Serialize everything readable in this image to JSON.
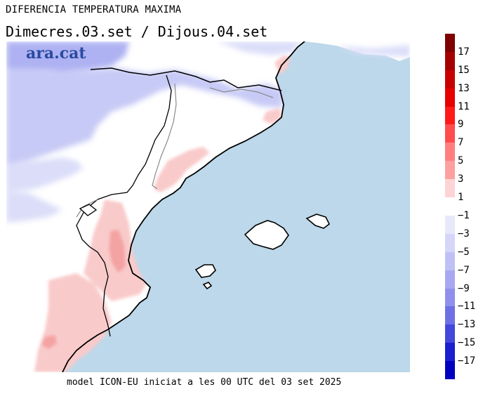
{
  "header": {
    "title": "DIFERENCIA TEMPERATURA MAXIMA",
    "subtitle": "Dimecres.03.set / Dijous.04.set"
  },
  "footer": {
    "text": "model ICON-EU iniciat a les 00 UTC del 03 set 2025"
  },
  "map": {
    "logo": "ara.cat",
    "sea_color": "#bcd8ea",
    "land_color": "#ffffff",
    "warm_color": "#f9c9c9",
    "cold_color": "#c9cdf6"
  },
  "colorbar": {
    "labels": [
      "17",
      "15",
      "13",
      "11",
      "9",
      "7",
      "5",
      "3",
      "1",
      "−1",
      "−3",
      "−5",
      "−7",
      "−9",
      "−11",
      "−13",
      "−15",
      "−17"
    ],
    "colors": [
      "#7f0000",
      "#a50000",
      "#c80000",
      "#e60000",
      "#ff1a1a",
      "#ff4d4d",
      "#ff7f7f",
      "#fca0a0",
      "#fdd4d4",
      "#ffffff",
      "#e8e8fb",
      "#d5d6f8",
      "#bfc1f5",
      "#a6a8f0",
      "#8e90eb",
      "#6d70e4",
      "#4347dc",
      "#1a1fd0",
      "#0000c0"
    ]
  }
}
